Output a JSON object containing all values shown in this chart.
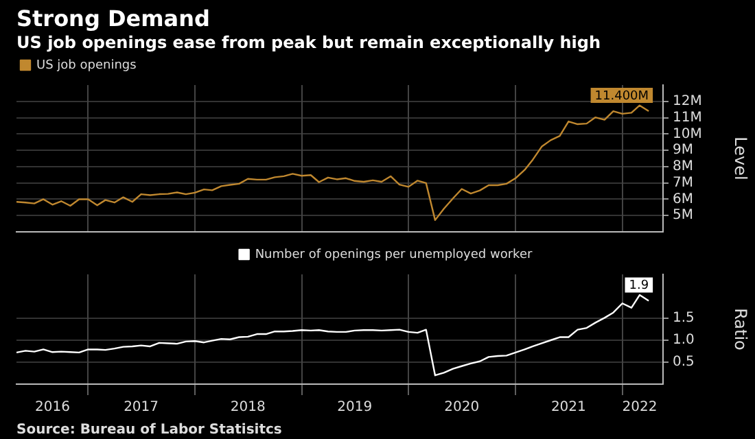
{
  "chart_data": [
    {
      "type": "line",
      "title": "Strong Demand",
      "subtitle": "US job openings ease from peak but remain exceptionally high",
      "ylabel": "Level",
      "x": [
        "2016-05",
        "2016-06",
        "2016-07",
        "2016-08",
        "2016-09",
        "2016-10",
        "2016-11",
        "2016-12",
        "2017-01",
        "2017-02",
        "2017-03",
        "2017-04",
        "2017-05",
        "2017-06",
        "2017-07",
        "2017-08",
        "2017-09",
        "2017-10",
        "2017-11",
        "2017-12",
        "2018-01",
        "2018-02",
        "2018-03",
        "2018-04",
        "2018-05",
        "2018-06",
        "2018-07",
        "2018-08",
        "2018-09",
        "2018-10",
        "2018-11",
        "2018-12",
        "2019-01",
        "2019-02",
        "2019-03",
        "2019-04",
        "2019-05",
        "2019-06",
        "2019-07",
        "2019-08",
        "2019-09",
        "2019-10",
        "2019-11",
        "2019-12",
        "2020-01",
        "2020-02",
        "2020-03",
        "2020-04",
        "2020-05",
        "2020-06",
        "2020-07",
        "2020-08",
        "2020-09",
        "2020-10",
        "2020-11",
        "2020-12",
        "2021-01",
        "2021-02",
        "2021-03",
        "2021-04",
        "2021-05",
        "2021-06",
        "2021-07",
        "2021-08",
        "2021-09",
        "2021-10",
        "2021-11",
        "2021-12",
        "2022-01",
        "2022-02",
        "2022-03",
        "2022-04"
      ],
      "series": [
        {
          "name": "US job openings",
          "color": "#c0882f",
          "values": [
            5.84,
            5.8,
            5.74,
            6.0,
            5.67,
            5.88,
            5.6,
            6.0,
            6.0,
            5.63,
            5.95,
            5.8,
            6.12,
            5.84,
            6.31,
            6.25,
            6.31,
            6.33,
            6.42,
            6.31,
            6.4,
            6.6,
            6.55,
            6.8,
            6.88,
            6.95,
            7.25,
            7.2,
            7.2,
            7.35,
            7.41,
            7.56,
            7.44,
            7.48,
            7.05,
            7.33,
            7.22,
            7.29,
            7.12,
            7.07,
            7.16,
            7.07,
            7.41,
            6.9,
            6.76,
            7.14,
            6.99,
            4.72,
            5.42,
            6.05,
            6.63,
            6.35,
            6.54,
            6.86,
            6.86,
            6.95,
            7.29,
            7.8,
            8.43,
            9.24,
            9.62,
            9.88,
            10.77,
            10.6,
            10.64,
            11.02,
            10.87,
            11.4,
            11.24,
            11.3,
            11.75,
            11.4
          ],
          "value_labels": [
            null,
            null,
            null,
            null,
            null,
            null,
            null,
            null,
            null,
            null,
            null,
            null,
            null,
            null,
            null,
            null,
            null,
            null,
            null,
            null,
            null,
            null,
            null,
            null,
            null,
            null,
            null,
            null,
            null,
            null,
            null,
            null,
            null,
            null,
            null,
            null,
            null,
            null,
            null,
            null,
            null,
            null,
            null,
            null,
            null,
            null,
            null,
            null,
            null,
            null,
            null,
            null,
            null,
            null,
            null,
            null,
            null,
            null,
            null,
            null,
            null,
            null,
            null,
            null,
            null,
            null,
            null,
            null,
            null,
            null,
            null,
            "11.400M"
          ]
        }
      ],
      "xlim": [
        "2016-05-01",
        "2022-05-20"
      ],
      "xticks": [
        {
          "value": "2017-01-01",
          "label": null
        },
        {
          "value": "2018-01-01",
          "label": null
        },
        {
          "value": "2019-01-01",
          "label": null
        },
        {
          "value": "2020-01-01",
          "label": null
        },
        {
          "value": "2021-01-01",
          "label": null
        },
        {
          "value": "2022-01-01",
          "label": null
        }
      ],
      "ylim": [
        4,
        13
      ],
      "yticks": [
        {
          "value": 5,
          "label": "5M"
        },
        {
          "value": 6,
          "label": "6M"
        },
        {
          "value": 7,
          "label": "7M"
        },
        {
          "value": 8,
          "label": "8M"
        },
        {
          "value": 9,
          "label": "9M"
        },
        {
          "value": 10,
          "label": "10M"
        },
        {
          "value": 11,
          "label": "11M"
        },
        {
          "value": 12,
          "label": "12M"
        }
      ],
      "grid": true,
      "legend": "top left",
      "tick_labels": "y"
    },
    {
      "type": "line",
      "ylabel": "Ratio",
      "annotations": [
        "Source: Bureau of Labor Statisitcs"
      ],
      "x": [
        "2016-05",
        "2016-06",
        "2016-07",
        "2016-08",
        "2016-09",
        "2016-10",
        "2016-11",
        "2016-12",
        "2017-01",
        "2017-02",
        "2017-03",
        "2017-04",
        "2017-05",
        "2017-06",
        "2017-07",
        "2017-08",
        "2017-09",
        "2017-10",
        "2017-11",
        "2017-12",
        "2018-01",
        "2018-02",
        "2018-03",
        "2018-04",
        "2018-05",
        "2018-06",
        "2018-07",
        "2018-08",
        "2018-09",
        "2018-10",
        "2018-11",
        "2018-12",
        "2019-01",
        "2019-02",
        "2019-03",
        "2019-04",
        "2019-05",
        "2019-06",
        "2019-07",
        "2019-08",
        "2019-09",
        "2019-10",
        "2019-11",
        "2019-12",
        "2020-01",
        "2020-02",
        "2020-03",
        "2020-04",
        "2020-05",
        "2020-06",
        "2020-07",
        "2020-08",
        "2020-09",
        "2020-10",
        "2020-11",
        "2020-12",
        "2021-01",
        "2021-02",
        "2021-03",
        "2021-04",
        "2021-05",
        "2021-06",
        "2021-07",
        "2021-08",
        "2021-09",
        "2021-10",
        "2021-11",
        "2021-12",
        "2022-01",
        "2022-02",
        "2022-03",
        "2022-04"
      ],
      "series": [
        {
          "name": "Number of openings per unemployed worker",
          "color": "#ffffff",
          "values": [
            0.72,
            0.76,
            0.74,
            0.79,
            0.73,
            0.74,
            0.73,
            0.72,
            0.79,
            0.79,
            0.78,
            0.81,
            0.85,
            0.86,
            0.88,
            0.86,
            0.94,
            0.93,
            0.92,
            0.97,
            0.98,
            0.95,
            0.99,
            1.03,
            1.02,
            1.07,
            1.08,
            1.14,
            1.14,
            1.2,
            1.2,
            1.21,
            1.23,
            1.22,
            1.23,
            1.2,
            1.19,
            1.19,
            1.22,
            1.23,
            1.23,
            1.22,
            1.23,
            1.24,
            1.19,
            1.17,
            1.24,
            0.2,
            0.26,
            0.35,
            0.41,
            0.47,
            0.52,
            0.62,
            0.64,
            0.65,
            0.72,
            0.79,
            0.86,
            0.93,
            1.0,
            1.07,
            1.07,
            1.24,
            1.28,
            1.4,
            1.51,
            1.63,
            1.84,
            1.74,
            2.03,
            1.9
          ],
          "value_labels": [
            null,
            null,
            null,
            null,
            null,
            null,
            null,
            null,
            null,
            null,
            null,
            null,
            null,
            null,
            null,
            null,
            null,
            null,
            null,
            null,
            null,
            null,
            null,
            null,
            null,
            null,
            null,
            null,
            null,
            null,
            null,
            null,
            null,
            null,
            null,
            null,
            null,
            null,
            null,
            null,
            null,
            null,
            null,
            null,
            null,
            null,
            null,
            null,
            null,
            null,
            null,
            null,
            null,
            null,
            null,
            null,
            null,
            null,
            null,
            null,
            null,
            null,
            null,
            null,
            null,
            null,
            null,
            null,
            null,
            null,
            null,
            "1.9"
          ]
        }
      ],
      "xlim": [
        "2016-05-01",
        "2022-05-20"
      ],
      "xticks": [
        {
          "value": "2016-09-01",
          "label": "2016"
        },
        {
          "value": "2017-01-01",
          "label": null
        },
        {
          "value": "2017-07-01",
          "label": "2017"
        },
        {
          "value": "2018-01-01",
          "label": null
        },
        {
          "value": "2018-07-01",
          "label": "2018"
        },
        {
          "value": "2019-01-01",
          "label": null
        },
        {
          "value": "2019-07-01",
          "label": "2019"
        },
        {
          "value": "2020-01-01",
          "label": null
        },
        {
          "value": "2020-07-01",
          "label": "2020"
        },
        {
          "value": "2021-01-01",
          "label": null
        },
        {
          "value": "2021-07-01",
          "label": "2021"
        },
        {
          "value": "2022-01-01",
          "label": null
        },
        {
          "value": "2022-03-01",
          "label": "2022"
        }
      ],
      "ylim": [
        0,
        2.5
      ],
      "yticks": [
        {
          "value": 0.5,
          "label": "0.5"
        },
        {
          "value": 1,
          "label": "1.0"
        },
        {
          "value": 1.5,
          "label": "1.5"
        }
      ],
      "grid": true,
      "legend": "top"
    }
  ]
}
